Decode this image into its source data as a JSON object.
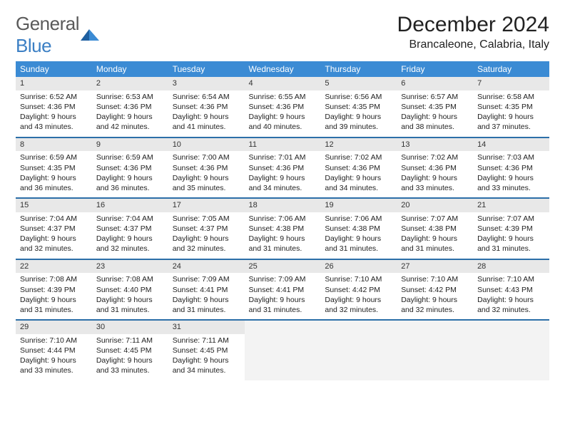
{
  "brand": {
    "general": "General",
    "blue": "Blue"
  },
  "title": "December 2024",
  "location": "Brancaleone, Calabria, Italy",
  "colors": {
    "header_bg": "#3b8bd4",
    "row_sep": "#2c6fa8",
    "daynum_bg": "#e8e8e8",
    "empty_bg": "#f3f3f3",
    "text": "#222222"
  },
  "weekdays": [
    "Sunday",
    "Monday",
    "Tuesday",
    "Wednesday",
    "Thursday",
    "Friday",
    "Saturday"
  ],
  "weeks": [
    [
      {
        "n": "1",
        "sr": "6:52 AM",
        "ss": "4:36 PM",
        "dl": "9 hours and 43 minutes."
      },
      {
        "n": "2",
        "sr": "6:53 AM",
        "ss": "4:36 PM",
        "dl": "9 hours and 42 minutes."
      },
      {
        "n": "3",
        "sr": "6:54 AM",
        "ss": "4:36 PM",
        "dl": "9 hours and 41 minutes."
      },
      {
        "n": "4",
        "sr": "6:55 AM",
        "ss": "4:36 PM",
        "dl": "9 hours and 40 minutes."
      },
      {
        "n": "5",
        "sr": "6:56 AM",
        "ss": "4:35 PM",
        "dl": "9 hours and 39 minutes."
      },
      {
        "n": "6",
        "sr": "6:57 AM",
        "ss": "4:35 PM",
        "dl": "9 hours and 38 minutes."
      },
      {
        "n": "7",
        "sr": "6:58 AM",
        "ss": "4:35 PM",
        "dl": "9 hours and 37 minutes."
      }
    ],
    [
      {
        "n": "8",
        "sr": "6:59 AM",
        "ss": "4:35 PM",
        "dl": "9 hours and 36 minutes."
      },
      {
        "n": "9",
        "sr": "6:59 AM",
        "ss": "4:36 PM",
        "dl": "9 hours and 36 minutes."
      },
      {
        "n": "10",
        "sr": "7:00 AM",
        "ss": "4:36 PM",
        "dl": "9 hours and 35 minutes."
      },
      {
        "n": "11",
        "sr": "7:01 AM",
        "ss": "4:36 PM",
        "dl": "9 hours and 34 minutes."
      },
      {
        "n": "12",
        "sr": "7:02 AM",
        "ss": "4:36 PM",
        "dl": "9 hours and 34 minutes."
      },
      {
        "n": "13",
        "sr": "7:02 AM",
        "ss": "4:36 PM",
        "dl": "9 hours and 33 minutes."
      },
      {
        "n": "14",
        "sr": "7:03 AM",
        "ss": "4:36 PM",
        "dl": "9 hours and 33 minutes."
      }
    ],
    [
      {
        "n": "15",
        "sr": "7:04 AM",
        "ss": "4:37 PM",
        "dl": "9 hours and 32 minutes."
      },
      {
        "n": "16",
        "sr": "7:04 AM",
        "ss": "4:37 PM",
        "dl": "9 hours and 32 minutes."
      },
      {
        "n": "17",
        "sr": "7:05 AM",
        "ss": "4:37 PM",
        "dl": "9 hours and 32 minutes."
      },
      {
        "n": "18",
        "sr": "7:06 AM",
        "ss": "4:38 PM",
        "dl": "9 hours and 31 minutes."
      },
      {
        "n": "19",
        "sr": "7:06 AM",
        "ss": "4:38 PM",
        "dl": "9 hours and 31 minutes."
      },
      {
        "n": "20",
        "sr": "7:07 AM",
        "ss": "4:38 PM",
        "dl": "9 hours and 31 minutes."
      },
      {
        "n": "21",
        "sr": "7:07 AM",
        "ss": "4:39 PM",
        "dl": "9 hours and 31 minutes."
      }
    ],
    [
      {
        "n": "22",
        "sr": "7:08 AM",
        "ss": "4:39 PM",
        "dl": "9 hours and 31 minutes."
      },
      {
        "n": "23",
        "sr": "7:08 AM",
        "ss": "4:40 PM",
        "dl": "9 hours and 31 minutes."
      },
      {
        "n": "24",
        "sr": "7:09 AM",
        "ss": "4:41 PM",
        "dl": "9 hours and 31 minutes."
      },
      {
        "n": "25",
        "sr": "7:09 AM",
        "ss": "4:41 PM",
        "dl": "9 hours and 31 minutes."
      },
      {
        "n": "26",
        "sr": "7:10 AM",
        "ss": "4:42 PM",
        "dl": "9 hours and 32 minutes."
      },
      {
        "n": "27",
        "sr": "7:10 AM",
        "ss": "4:42 PM",
        "dl": "9 hours and 32 minutes."
      },
      {
        "n": "28",
        "sr": "7:10 AM",
        "ss": "4:43 PM",
        "dl": "9 hours and 32 minutes."
      }
    ],
    [
      {
        "n": "29",
        "sr": "7:10 AM",
        "ss": "4:44 PM",
        "dl": "9 hours and 33 minutes."
      },
      {
        "n": "30",
        "sr": "7:11 AM",
        "ss": "4:45 PM",
        "dl": "9 hours and 33 minutes."
      },
      {
        "n": "31",
        "sr": "7:11 AM",
        "ss": "4:45 PM",
        "dl": "9 hours and 34 minutes."
      },
      null,
      null,
      null,
      null
    ]
  ],
  "labels": {
    "sunrise": "Sunrise: ",
    "sunset": "Sunset: ",
    "daylight": "Daylight: "
  }
}
